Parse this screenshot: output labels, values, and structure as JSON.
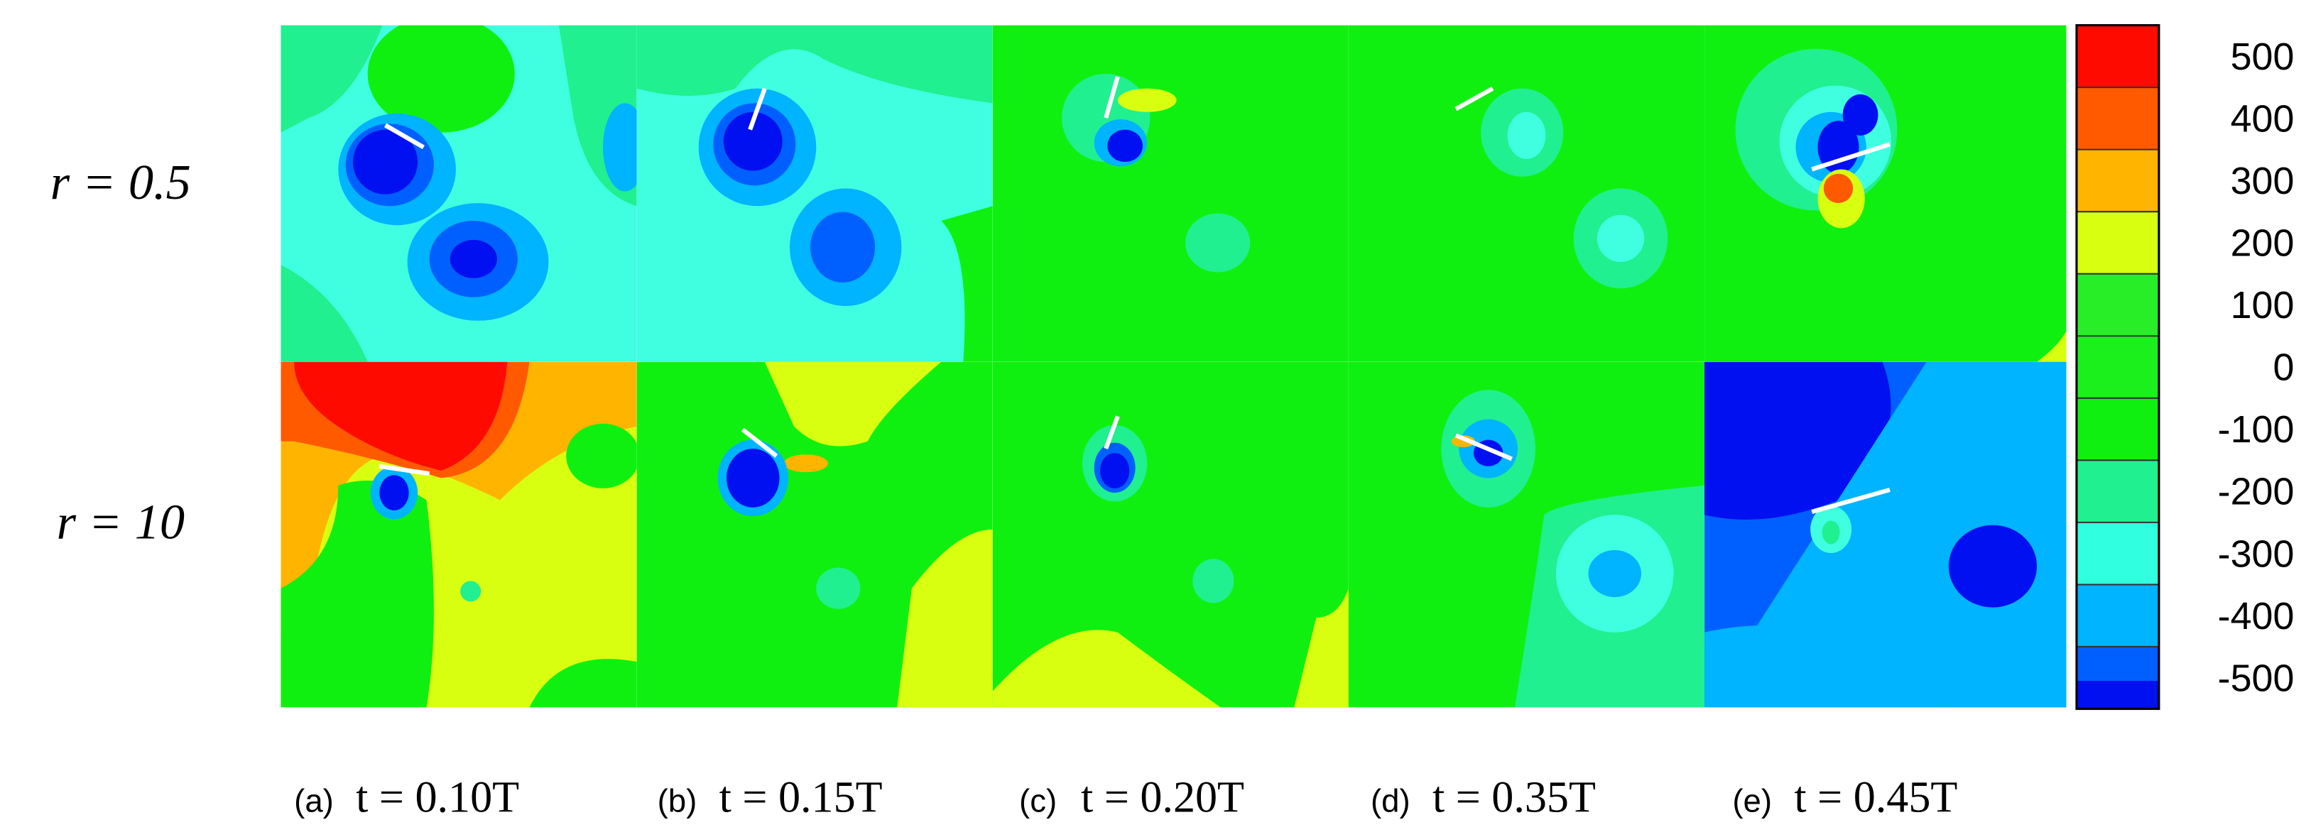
{
  "row_labels": [
    "r = 0.5",
    "r = 10"
  ],
  "panels": [
    {
      "label": "(a)",
      "time": "t = 0.10T"
    },
    {
      "label": "(b)",
      "time": "t = 0.15T"
    },
    {
      "label": "(c)",
      "time": "t = 0.20T"
    },
    {
      "label": "(d)",
      "time": "t = 0.35T"
    },
    {
      "label": "(e)",
      "time": "t = 0.45T"
    }
  ],
  "colorbar": {
    "levels": [
      500,
      400,
      300,
      200,
      100,
      0,
      -100,
      -200,
      -300,
      -400,
      -500
    ],
    "colors": [
      "#ff0a00",
      "#ff5a00",
      "#ffb400",
      "#d8ff10",
      "#28ee28",
      "#1cf01c",
      "#10f010",
      "#20f090",
      "#30ffe0",
      "#00b4ff",
      "#0060ff"
    ],
    "bottom_color": "#0010f0"
  }
}
